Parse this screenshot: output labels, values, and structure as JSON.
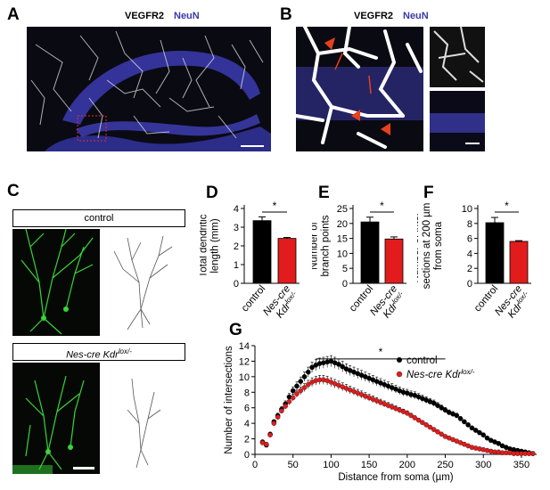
{
  "panels": {
    "A": {
      "letter": "A",
      "label_marker1": "VEGFR2",
      "label_marker2": "NeuN"
    },
    "B": {
      "letter": "B",
      "label_marker1": "VEGFR2",
      "label_marker2": "NeuN"
    },
    "C": {
      "letter": "C",
      "control_label": "control",
      "mutant_label": "Nes-cre Kdr",
      "mutant_sup": "lox/-"
    },
    "D": {
      "letter": "D"
    },
    "E": {
      "letter": "E"
    },
    "F": {
      "letter": "F"
    },
    "G": {
      "letter": "G"
    }
  },
  "colors": {
    "control": "#000000",
    "mutant": "#e21c1c",
    "neun": "#3a3aa8",
    "arrow": "#e8401c"
  },
  "chart_data": [
    {
      "id": "D",
      "type": "bar",
      "ylabel_lines": [
        "Total dendritic",
        "length (mm)"
      ],
      "ylim": [
        0,
        4
      ],
      "yticks": [
        0,
        1,
        2,
        3,
        4
      ],
      "categories": [
        {
          "text": "control",
          "sup": ""
        },
        {
          "text": "Nes-cre",
          "sub2": "Kdr",
          "sup": "lox/-"
        }
      ],
      "values": [
        3.35,
        2.4
      ],
      "errors": [
        0.2,
        0.05
      ],
      "significance": "*"
    },
    {
      "id": "E",
      "type": "bar",
      "ylabel_lines": [
        "Number of",
        "branch points"
      ],
      "ylim": [
        0,
        25
      ],
      "yticks": [
        0,
        5,
        10,
        15,
        20,
        25
      ],
      "categories": [
        {
          "text": "control",
          "sup": ""
        },
        {
          "text": "Nes-cre",
          "sub2": "Kdr",
          "sup": "lox/-"
        }
      ],
      "values": [
        20.5,
        14.8
      ],
      "errors": [
        1.6,
        0.7
      ],
      "significance": "*"
    },
    {
      "id": "F",
      "type": "bar",
      "ylabel_lines": [
        "Number of inter-",
        "sections at 200 µm",
        "from soma"
      ],
      "ylim": [
        0,
        10
      ],
      "yticks": [
        0,
        2,
        4,
        6,
        8,
        10
      ],
      "categories": [
        {
          "text": "control",
          "sup": ""
        },
        {
          "text": "Nes-cre",
          "sub2": "Kdr",
          "sup": "lox/-"
        }
      ],
      "values": [
        8.1,
        5.6
      ],
      "errors": [
        0.7,
        0.1
      ],
      "significance": "*"
    },
    {
      "id": "G",
      "type": "line",
      "xlabel": "Distance from soma (µm)",
      "ylabel": "Number of intersections",
      "xlim": [
        0,
        370
      ],
      "xticks": [
        0,
        50,
        100,
        150,
        200,
        250,
        300,
        350
      ],
      "ylim": [
        0,
        14
      ],
      "yticks": [
        0,
        2,
        4,
        6,
        8,
        10,
        12,
        14
      ],
      "significance": "*",
      "sig_range": [
        80,
        250
      ],
      "legend": [
        {
          "text": "control",
          "sup": ""
        },
        {
          "text": "Nes-cre Kdr",
          "sup": "lox/-"
        }
      ],
      "series": [
        {
          "x": [
            10,
            15,
            20,
            25,
            30,
            35,
            40,
            45,
            50,
            55,
            60,
            65,
            70,
            75,
            80,
            85,
            90,
            95,
            100,
            105,
            110,
            115,
            120,
            125,
            130,
            135,
            140,
            145,
            150,
            155,
            160,
            165,
            170,
            175,
            180,
            185,
            190,
            195,
            200,
            205,
            210,
            215,
            220,
            225,
            230,
            235,
            240,
            245,
            250,
            255,
            260,
            265,
            270,
            275,
            280,
            285,
            290,
            295,
            300,
            305,
            310,
            315,
            320,
            325,
            330,
            335,
            340,
            345,
            350,
            355,
            360,
            365
          ],
          "y": [
            1.6,
            1.2,
            2.6,
            4.2,
            5.0,
            5.8,
            6.5,
            7.4,
            8.2,
            8.8,
            9.4,
            10.0,
            10.6,
            11.2,
            11.5,
            11.7,
            11.8,
            11.9,
            12.0,
            11.8,
            11.6,
            11.3,
            11.0,
            10.8,
            10.6,
            10.4,
            10.2,
            10.0,
            9.8,
            9.6,
            9.4,
            9.2,
            9.0,
            8.8,
            8.6,
            8.4,
            8.2,
            8.0,
            7.9,
            7.7,
            7.6,
            7.4,
            7.2,
            7.0,
            6.8,
            6.6,
            6.3,
            6.0,
            5.7,
            5.4,
            5.2,
            5.0,
            4.6,
            4.2,
            3.8,
            3.4,
            3.1,
            2.8,
            2.5,
            2.1,
            1.8,
            1.6,
            1.4,
            1.1,
            0.9,
            0.7,
            0.6,
            0.5,
            0.4,
            0.3,
            0.2,
            0.1
          ]
        },
        {
          "x": [
            10,
            15,
            20,
            25,
            30,
            35,
            40,
            45,
            50,
            55,
            60,
            65,
            70,
            75,
            80,
            85,
            90,
            95,
            100,
            105,
            110,
            115,
            120,
            125,
            130,
            135,
            140,
            145,
            150,
            155,
            160,
            165,
            170,
            175,
            180,
            185,
            190,
            195,
            200,
            205,
            210,
            215,
            220,
            225,
            230,
            235,
            240,
            245,
            250,
            255,
            260,
            265,
            270,
            275,
            280,
            285,
            290,
            295,
            300,
            305,
            310,
            315,
            320,
            325,
            330,
            335,
            340,
            345,
            350,
            355,
            360,
            365
          ],
          "y": [
            1.5,
            1.3,
            2.5,
            4.0,
            4.8,
            5.6,
            6.2,
            6.8,
            7.3,
            7.8,
            8.2,
            8.6,
            9.0,
            9.3,
            9.5,
            9.6,
            9.6,
            9.5,
            9.3,
            9.1,
            8.9,
            8.7,
            8.5,
            8.3,
            8.1,
            7.9,
            7.7,
            7.5,
            7.3,
            7.1,
            6.9,
            6.7,
            6.5,
            6.3,
            6.1,
            5.9,
            5.7,
            5.5,
            5.3,
            5.0,
            4.7,
            4.4,
            4.1,
            3.8,
            3.5,
            3.2,
            2.9,
            2.6,
            2.3,
            2.1,
            1.9,
            1.7,
            1.5,
            1.3,
            1.1,
            0.9,
            0.8,
            0.7,
            0.6,
            0.5,
            0.4,
            0.3,
            0.3,
            0.2,
            0.2,
            0.2,
            0.1,
            0.1,
            0.1,
            0.1,
            0.1,
            0.1
          ]
        }
      ]
    }
  ]
}
